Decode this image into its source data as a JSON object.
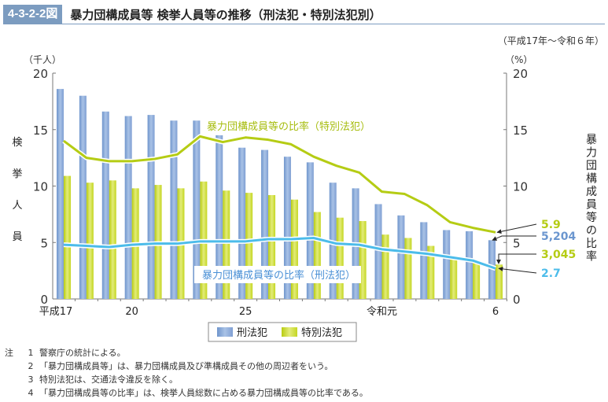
{
  "header": {
    "figure_number": "4-3-2-2図",
    "title": "暴力団構成員等 検挙人員等の推移（刑法犯・特別法犯別）"
  },
  "period_note": "（平成17年〜令和６年）",
  "chart_data": {
    "type": "bar",
    "title": "暴力団構成員等 検挙人員等の推移（刑法犯・特別法犯別）",
    "categories": [
      "平成17",
      "18",
      "19",
      "20",
      "21",
      "22",
      "23",
      "24",
      "25",
      "26",
      "27",
      "28",
      "29",
      "30",
      "令和元",
      "2",
      "3",
      "4",
      "5",
      "6"
    ],
    "xtick_labels": [
      {
        "index": 0,
        "label": "平成17"
      },
      {
        "index": 3,
        "label": "20"
      },
      {
        "index": 8,
        "label": "25"
      },
      {
        "index": 14,
        "label": "令和元"
      },
      {
        "index": 19,
        "label": "6"
      }
    ],
    "ylabel_left": "検挙人員",
    "yunit_left": "（千人）",
    "ylim_left": [
      0,
      20
    ],
    "yticks_left": [
      0,
      5,
      10,
      15,
      20
    ],
    "ylabel_right": "暴力団構成員等の比率",
    "yunit_right": "（%）",
    "ylim_right": [
      0,
      20
    ],
    "yticks_right": [
      0,
      5,
      10,
      15,
      20
    ],
    "series": [
      {
        "name": "刑法犯",
        "type": "bar",
        "axis": "left",
        "color": "#8fb0dc",
        "values": [
          18.6,
          18.0,
          16.6,
          16.2,
          16.3,
          15.8,
          15.8,
          14.5,
          13.4,
          13.2,
          12.6,
          12.1,
          10.3,
          9.8,
          8.4,
          7.4,
          6.8,
          6.1,
          6.0,
          5.204
        ]
      },
      {
        "name": "特別法犯",
        "type": "bar",
        "axis": "left",
        "color": "#c8d92a",
        "values": [
          10.9,
          10.3,
          10.5,
          9.8,
          10.1,
          9.8,
          10.4,
          9.6,
          9.4,
          9.2,
          8.8,
          7.7,
          7.2,
          6.9,
          5.7,
          5.4,
          4.7,
          3.6,
          3.4,
          3.045
        ]
      },
      {
        "name": "暴力団構成員等の比率（特別法犯）",
        "type": "line",
        "axis": "right",
        "color": "#b5cc14",
        "values": [
          14.0,
          12.5,
          12.2,
          12.2,
          12.4,
          12.8,
          14.4,
          13.9,
          14.3,
          14.1,
          13.7,
          12.6,
          11.8,
          11.2,
          9.5,
          9.3,
          8.3,
          6.8,
          6.3,
          5.9
        ]
      },
      {
        "name": "暴力団構成員等の比率（刑法犯）",
        "type": "line",
        "axis": "right",
        "color": "#4cbcea",
        "values": [
          4.8,
          4.7,
          4.6,
          4.8,
          4.9,
          4.9,
          5.1,
          5.1,
          5.1,
          5.3,
          5.3,
          5.4,
          4.9,
          4.8,
          4.4,
          4.2,
          4.0,
          3.7,
          3.4,
          2.7
        ]
      }
    ],
    "annotations": [
      {
        "text": "5.9",
        "color": "#b5cc14",
        "series": 2
      },
      {
        "text": "5,204",
        "color": "#6b96cf",
        "series": 0
      },
      {
        "text": "3,045",
        "color": "#b5cc14",
        "series": 1
      },
      {
        "text": "2.7",
        "color": "#4cbcea",
        "series": 3
      }
    ],
    "line_labels": {
      "special": "暴力団構成員等の比率（特別法犯）",
      "penal": "暴力団構成員等の比率（刑法犯）"
    },
    "legend": {
      "position": "bottom",
      "items": [
        "刑法犯",
        "特別法犯"
      ]
    },
    "grid": false
  },
  "notes": {
    "head": "注",
    "items": [
      {
        "num": "1",
        "text": "警察庁の統計による。"
      },
      {
        "num": "2",
        "text": "「暴力団構成員等」は、暴力団構成員及び準構成員その他の周辺者をいう。"
      },
      {
        "num": "3",
        "text": "特別法犯は、交通法令違反を除く。"
      },
      {
        "num": "4",
        "text": "「暴力団構成員等の比率」は、検挙人員総数に占める暴力団構成員等の比率である。"
      }
    ]
  }
}
